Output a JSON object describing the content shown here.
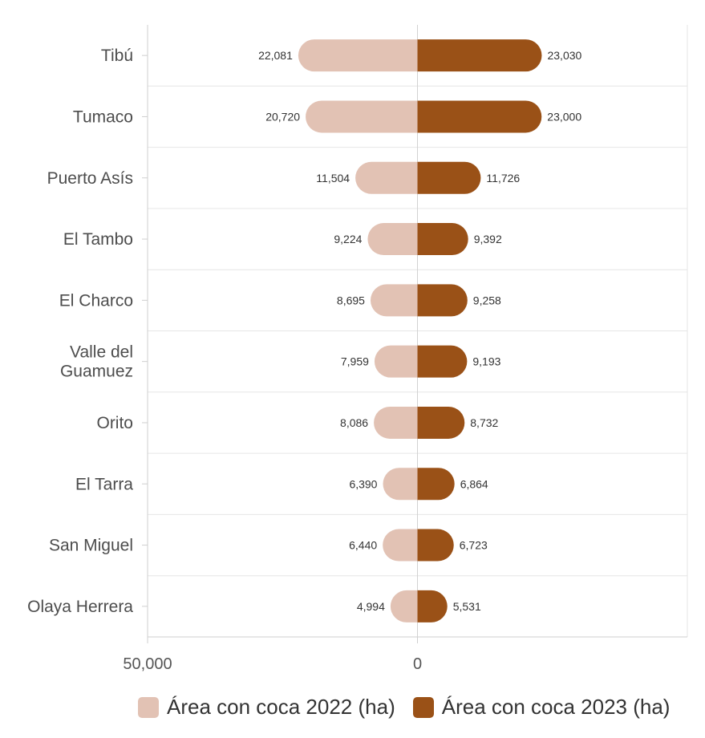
{
  "chart_data": {
    "type": "bar",
    "orientation": "horizontal-diverging",
    "categories": [
      "Tibú",
      "Tumaco",
      "Puerto Asís",
      "El Tambo",
      "El Charco",
      "Valle del Guamuez",
      "Orito",
      "El Tarra",
      "San Miguel",
      "Olaya Herrera"
    ],
    "series": [
      {
        "name": "Área con coca 2022 (ha)",
        "side": "left",
        "color": "#e2c2b4",
        "values": [
          22081,
          20720,
          11504,
          9224,
          8695,
          7959,
          8086,
          6390,
          6440,
          4994
        ],
        "labels": [
          "22,081",
          "20,720",
          "11,504",
          "9,224",
          "8,695",
          "7,959",
          "8,086",
          "6,390",
          "6,440",
          "4,994"
        ]
      },
      {
        "name": "Área con coca 2023 (ha)",
        "side": "right",
        "color": "#9a5117",
        "values": [
          23030,
          23000,
          11726,
          9392,
          9258,
          9193,
          8732,
          6864,
          6723,
          5531
        ],
        "labels": [
          "23,030",
          "23,000",
          "11,726",
          "9,392",
          "9,258",
          "9,193",
          "8,732",
          "6,864",
          "6,723",
          "5,531"
        ]
      }
    ],
    "x_ticks": [
      "50,000",
      "0"
    ],
    "xlim": [
      -50000,
      50000
    ],
    "grid": true,
    "legend": "bottom"
  }
}
